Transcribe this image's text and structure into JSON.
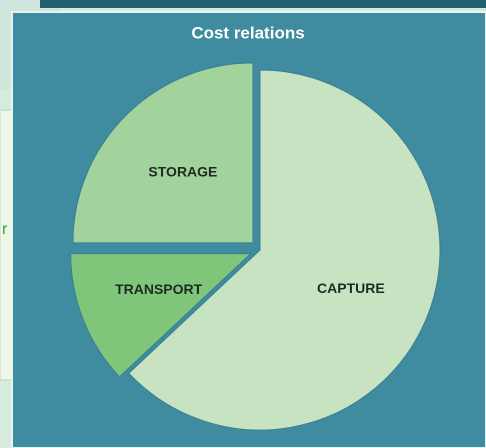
{
  "chart_data": {
    "type": "pie",
    "title": "Cost relations",
    "categories": [
      "CAPTURE",
      "TRANSPORT",
      "STORAGE"
    ],
    "values": [
      63,
      12,
      25
    ],
    "colors": [
      "#c8e3c1",
      "#7fc67b",
      "#a3d39c"
    ]
  },
  "side_text": "r"
}
